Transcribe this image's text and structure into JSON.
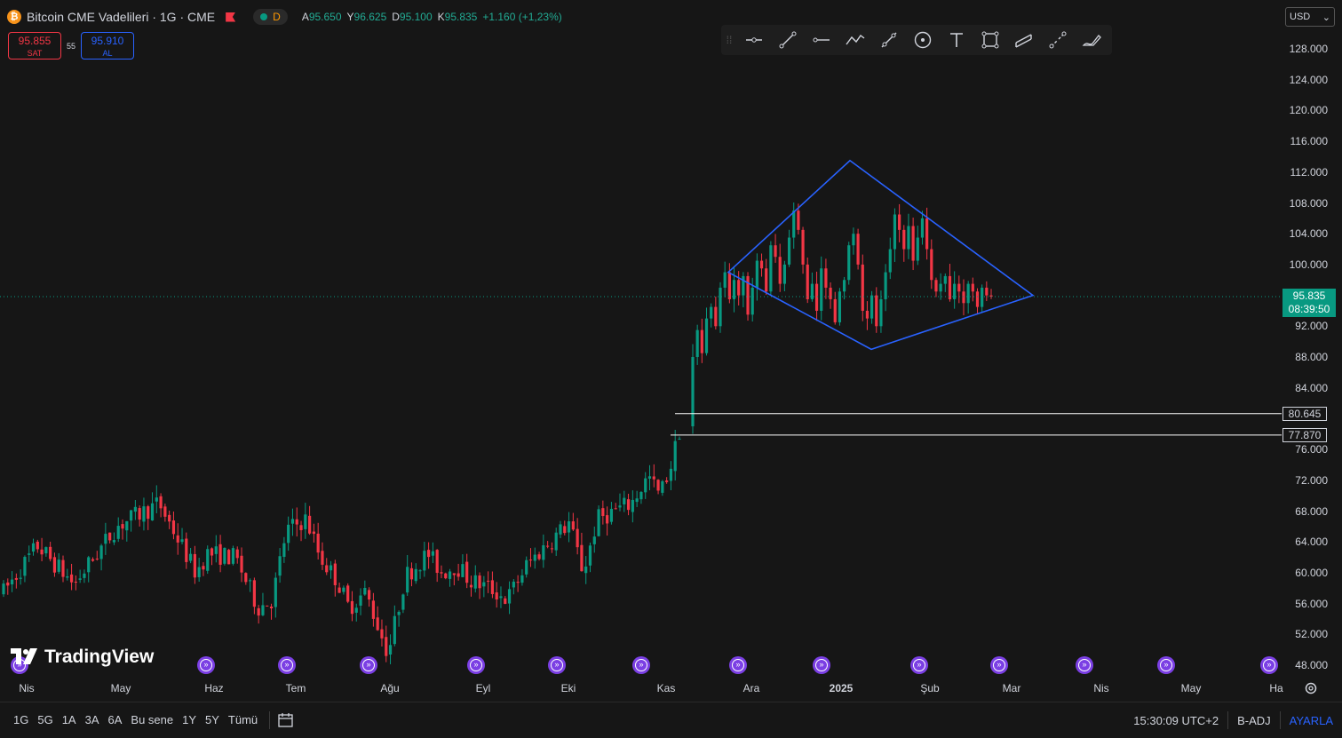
{
  "header": {
    "coin_glyph": "₿",
    "symbol": "Bitcoin CME Vadelileri · 1G · CME",
    "status_letter": "D",
    "open_key": "A",
    "open": "95.650",
    "high_key": "Y",
    "high": "96.625",
    "low_key": "D",
    "low": "95.100",
    "close_key": "K",
    "close": "95.835",
    "change": "+1.160 (+1,23%)"
  },
  "trade": {
    "sell_price": "95.855",
    "sell_label": "SAT",
    "spread": "55",
    "buy_price": "95.910",
    "buy_label": "AL"
  },
  "currency": "USD",
  "price_axis": {
    "labels": [
      "128.000",
      "124.000",
      "120.000",
      "116.000",
      "112.000",
      "108.000",
      "104.000",
      "100.000",
      "92.000",
      "88.000",
      "84.000",
      "76.000",
      "72.000",
      "68.000",
      "64.000",
      "60.000",
      "56.000",
      "52.000",
      "48.000"
    ],
    "last_price": "95.835",
    "countdown": "08:39:50",
    "level_1": "80.645",
    "level_2": "77.870"
  },
  "time_axis": [
    "Nis",
    "May",
    "Haz",
    "Tem",
    "Ağu",
    "Eyl",
    "Eki",
    "Kas",
    "Ara",
    "2025",
    "Şub",
    "Mar",
    "Nis",
    "May",
    "Ha"
  ],
  "logo_text": "TradingView",
  "bottom_bar": {
    "ranges": [
      "1G",
      "5G",
      "1A",
      "3A",
      "6A",
      "Bu sene",
      "1Y",
      "5Y",
      "Tümü"
    ],
    "time": "15:30:09 UTC+2",
    "adj": "B-ADJ",
    "settings": "AYARLA"
  },
  "colors": {
    "up": "#089981",
    "down": "#f23645",
    "pattern": "#2962ff",
    "level": "#ffffff",
    "event": "#7b3fe4"
  },
  "icons": [
    "drag-handle-icon",
    "horizontal-ray-icon",
    "trend-line-icon",
    "horizontal-line-icon",
    "path-icon",
    "parallel-channel-icon",
    "circle-icon",
    "text-icon",
    "rectangle-icon",
    "fib-icon",
    "brush-icon",
    "eraser-pen-icon"
  ],
  "chart_data": {
    "type": "candlestick",
    "title": "Bitcoin CME Vadelileri · 1G · CME",
    "ylim": [
      46000,
      131000
    ],
    "y_unit": "USD",
    "last_close": 95835,
    "horizontal_levels": [
      80645,
      77870
    ],
    "diamond_pattern": {
      "left": [
        "Kas sonu",
        99000
      ],
      "top": [
        "Ara sonu",
        113500
      ],
      "right": [
        "Mar başı",
        96000
      ],
      "bottom": [
        "Oca",
        89000
      ]
    },
    "monthly_closes": [
      {
        "month": "Nis",
        "close": 64000
      },
      {
        "month": "May",
        "close": 67000
      },
      {
        "month": "Haz",
        "close": 62000
      },
      {
        "month": "Tem",
        "close": 64000
      },
      {
        "month": "Ağu",
        "close": 59000
      },
      {
        "month": "Eyl",
        "close": 63000
      },
      {
        "month": "Eki",
        "close": 70000
      },
      {
        "month": "Kas",
        "close": 98000
      },
      {
        "month": "Ara",
        "close": 94000
      },
      {
        "month": "2025",
        "close": 102000
      },
      {
        "month": "Şub",
        "close": 95835
      }
    ]
  }
}
